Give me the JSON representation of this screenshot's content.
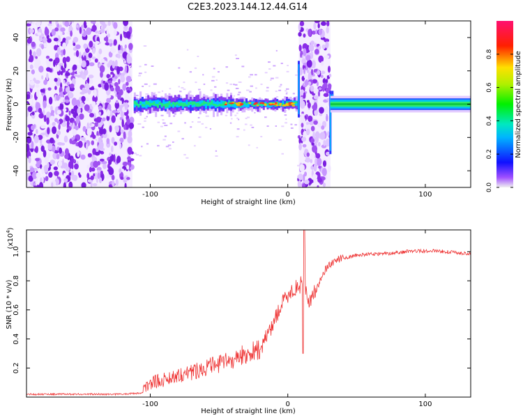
{
  "title": "C2E3.2023.144.12.44.G14",
  "chart_data": [
    {
      "type": "heatmap",
      "xlabel": "Height of straight line (km)",
      "ylabel": "Frequency (Hz)",
      "xlim": [
        -190,
        133
      ],
      "ylim": [
        -50,
        50
      ],
      "xticks": [
        -100,
        0,
        100
      ],
      "xtick_labels": [
        "-100",
        "0",
        "100"
      ],
      "yticks": [
        -40,
        -20,
        0,
        20,
        40
      ],
      "ytick_labels": [
        "-40",
        "-20",
        "0",
        "20",
        "40"
      ],
      "colorbar": {
        "label": "Normalized spectral amplitude",
        "range": [
          0,
          1
        ],
        "ticks": [
          0,
          0.2,
          0.4,
          0.6,
          0.8
        ],
        "tick_labels": [
          "0.0",
          "0.2",
          "0.4",
          "0.6",
          "0.8"
        ],
        "colormap": "rainbow"
      },
      "regions": [
        {
          "x": [
            -190,
            -112
          ],
          "description": "broadband noise"
        },
        {
          "x": [
            -112,
            8
          ],
          "description": "signal band near 0 Hz, widening with noise"
        },
        {
          "x": [
            8,
            31
          ],
          "description": "broadband noise"
        },
        {
          "x": [
            31,
            133
          ],
          "description": "clean signal band at ~0 Hz"
        }
      ]
    },
    {
      "type": "line",
      "xlabel": "Height of straight line (km)",
      "ylabel": "SNR (10 * v/v)",
      "y_multiplier_label": "(x10",
      "y_multiplier_exp": "4",
      "y_multiplier_close": ")",
      "xlim": [
        -190,
        133
      ],
      "ylim": [
        0,
        1.15
      ],
      "xticks": [
        -100,
        0,
        100
      ],
      "xtick_labels": [
        "-100",
        "0",
        "100"
      ],
      "yticks": [
        0.2,
        0.4,
        0.6,
        0.8,
        1.0
      ],
      "ytick_labels": [
        "0.2",
        "0.4",
        "0.6",
        "0.8",
        "1.0"
      ],
      "series": [
        {
          "color": "#ee3333",
          "x": [
            -190,
            -150,
            -120,
            -105,
            -100,
            -90,
            -80,
            -70,
            -60,
            -50,
            -40,
            -30,
            -20,
            -15,
            -10,
            -5,
            0,
            5,
            10,
            12,
            14,
            18,
            22,
            26,
            30,
            35,
            40,
            50,
            60,
            70,
            80,
            90,
            100,
            110,
            120,
            133
          ],
          "values": [
            0.02,
            0.02,
            0.02,
            0.03,
            0.08,
            0.1,
            0.13,
            0.15,
            0.18,
            0.2,
            0.23,
            0.27,
            0.3,
            0.4,
            0.5,
            0.6,
            0.68,
            0.72,
            0.75,
            0.8,
            0.62,
            0.68,
            0.75,
            0.85,
            0.9,
            0.93,
            0.95,
            0.97,
            0.98,
            0.98,
            0.99,
            1.0,
            1.0,
            1.0,
            0.99,
            0.98
          ]
        }
      ]
    }
  ]
}
